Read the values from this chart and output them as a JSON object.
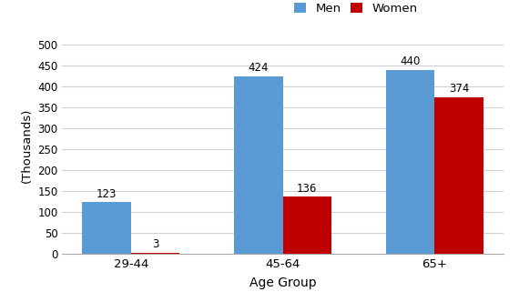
{
  "categories": [
    "29-44",
    "45-64",
    "65+"
  ],
  "men_values": [
    123,
    424,
    440
  ],
  "women_values": [
    3,
    136,
    374
  ],
  "men_color": "#5B9BD5",
  "women_color": "#C00000",
  "xlabel": "Age Group",
  "ylabel": "(Thousands)",
  "ylim": [
    0,
    520
  ],
  "yticks": [
    0,
    50,
    100,
    150,
    200,
    250,
    300,
    350,
    400,
    450,
    500
  ],
  "legend_labels": [
    "Men",
    "Women"
  ],
  "bar_width": 0.32,
  "background_color": "#ffffff",
  "grid_color": "#d0d0d0"
}
